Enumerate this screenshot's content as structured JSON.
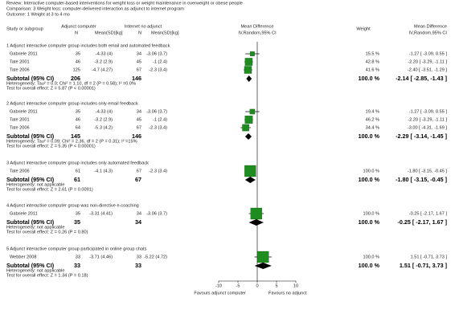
{
  "chart_data": {
    "type": "forest",
    "review": "Review:  Interactive computer-based interventions for weight loss or weight maintenance in overweight or obese people",
    "comparison": "Comparison:  3 Weight loss: computer-delivered interaction as adjunct to internet program",
    "outcome": "Outcome:  1 Weight at 3 to 4 mo",
    "columns": [
      "Study or subgroup",
      "Adjunct computer",
      "N",
      "Mean(SD)[kg]",
      "Internet no adjunct",
      "N",
      "Mean(SD)[kg]",
      "Mean Difference",
      "IV,Random,95% CI",
      "Weight",
      "Mean Difference",
      "IV,Random,95% CI"
    ],
    "subgroups": [
      {
        "title": "1 Adjunct interactive computer group includes both email and automated feedback",
        "studies": [
          {
            "name": "Gabriele 2011",
            "n1": 35,
            "mean_sd1": "-4.33 (4)",
            "n2": 34,
            "mean_sd2": "-3.06 (3.7)",
            "weight": 15.5,
            "weight_label": "15.5 %",
            "md": -1.27,
            "ci_low": -3.09,
            "ci_high": 0.55,
            "ci_label": "-1.27 [ -3.09, 0.55 ]"
          },
          {
            "name": "Tate 2001",
            "n1": 46,
            "mean_sd1": "-3.2 (2.9)",
            "n2": 45,
            "mean_sd2": "-1 (2.4)",
            "weight": 42.8,
            "weight_label": "42.8 %",
            "md": -2.2,
            "ci_low": -3.29,
            "ci_high": -1.11,
            "ci_label": "-2.20 [ -3.29, -1.11 ]"
          },
          {
            "name": "Tate 2006",
            "n1": 125,
            "mean_sd1": "-4.7 (4.27)",
            "n2": 67,
            "mean_sd2": "-2.3 (3.4)",
            "weight": 41.6,
            "weight_label": "41.6 %",
            "md": -2.4,
            "ci_low": -3.51,
            "ci_high": -1.29,
            "ci_label": "-2.40 [ -3.51, -1.29 ]"
          }
        ],
        "subtotal": {
          "label": "Subtotal (95% CI)",
          "n1": 206,
          "n2": 146,
          "weight_label": "100.0 %",
          "md": -2.14,
          "ci_low": -2.85,
          "ci_high": -1.43,
          "ci_label": "-2.14 [ -2.85, -1.43 ]"
        },
        "heterogeneity": "Heterogeneity: Tau² = 0.0; Chi² = 1.10, df = 2 (P = 0.58); I² =0.0%",
        "overall_effect": "Test for overall effect: Z = 5.87 (P < 0.00001)"
      },
      {
        "title": "2 Adjunct interactive computer group includes only email feedback",
        "studies": [
          {
            "name": "Gabriele 2011",
            "n1": 35,
            "mean_sd1": "-4.33 (4)",
            "n2": 34,
            "mean_sd2": "-3.06 (3.7)",
            "weight": 19.4,
            "weight_label": "19.4 %",
            "md": -1.27,
            "ci_low": -3.09,
            "ci_high": 0.55,
            "ci_label": "-1.27 [ -3.09, 0.55 ]"
          },
          {
            "name": "Tate 2001",
            "n1": 46,
            "mean_sd1": "-3.2 (2.9)",
            "n2": 45,
            "mean_sd2": "-1 (2.4)",
            "weight": 46.2,
            "weight_label": "46.2 %",
            "md": -2.2,
            "ci_low": -3.29,
            "ci_high": -1.11,
            "ci_label": "-2.20 [ -3.29, -1.11 ]"
          },
          {
            "name": "Tate 2006",
            "n1": 64,
            "mean_sd1": "-5.3 (4.2)",
            "n2": 67,
            "mean_sd2": "-2.3 (3.4)",
            "weight": 34.4,
            "weight_label": "34.4 %",
            "md": -3.0,
            "ci_low": -4.31,
            "ci_high": -1.69,
            "ci_label": "-3.00 [ -4.31, -1.69 ]"
          }
        ],
        "subtotal": {
          "label": "Subtotal (95% CI)",
          "n1": 145,
          "n2": 146,
          "weight_label": "100.0 %",
          "md": -2.29,
          "ci_low": -3.14,
          "ci_high": -1.45,
          "ci_label": "-2.29 [ -3.14, -1.45 ]"
        },
        "heterogeneity": "Heterogeneity: Tau² = 0.09; Chi² = 2.36, df = 2 (P = 0.31); I² =15%",
        "overall_effect": "Test for overall effect: Z = 5.35 (P < 0.00001)"
      },
      {
        "title": "3 Adjunct interactive computer group includes only automated feedback",
        "studies": [
          {
            "name": "Tate 2006",
            "n1": 61,
            "mean_sd1": "-4.1 (4.3)",
            "n2": 67,
            "mean_sd2": "-2.3 (3.4)",
            "weight": 100.0,
            "weight_label": "100.0 %",
            "md": -1.8,
            "ci_low": -3.15,
            "ci_high": -0.45,
            "ci_label": "-1.80 [ -3.15, -0.45 ]"
          }
        ],
        "subtotal": {
          "label": "Subtotal (95% CI)",
          "n1": 61,
          "n2": 67,
          "weight_label": "100.0 %",
          "md": -1.8,
          "ci_low": -3.15,
          "ci_high": -0.45,
          "ci_label": "-1.80 [ -3.15, -0.45 ]"
        },
        "heterogeneity": "Heterogeneity: not applicable",
        "overall_effect": "Test for overall effect: Z = 2.61 (P = 0.0091)"
      },
      {
        "title": "4 Adjunct interactive computer group was non-directive e-coaching",
        "studies": [
          {
            "name": "Gabriele 2011",
            "n1": 35,
            "mean_sd1": "-3.31 (4.41)",
            "n2": 34,
            "mean_sd2": "-3.06 (3.7)",
            "weight": 100.0,
            "weight_label": "100.0 %",
            "md": -0.25,
            "ci_low": -2.17,
            "ci_high": 1.67,
            "ci_label": "-0.25 [ -2.17, 1.67 ]"
          }
        ],
        "subtotal": {
          "label": "Subtotal (95% CI)",
          "n1": 35,
          "n2": 34,
          "weight_label": "100.0 %",
          "md": -0.25,
          "ci_low": -2.17,
          "ci_high": 1.67,
          "ci_label": "-0.25 [ -2.17, 1.67 ]"
        },
        "heterogeneity": "Heterogeneity: not applicable",
        "overall_effect": "Test for overall effect: Z = 0.26 (P = 0.80)"
      },
      {
        "title": "5 Adjunct interactive computer group participated in online group chats",
        "studies": [
          {
            "name": "Webber 2008",
            "n1": 33,
            "mean_sd1": "-3.71 (4.46)",
            "n2": 33,
            "mean_sd2": "-5.22 (4.72)",
            "weight": 100.0,
            "weight_label": "100.0 %",
            "md": 1.51,
            "ci_low": -0.71,
            "ci_high": 3.73,
            "ci_label": "1.51 [ -0.71, 3.73 ]"
          }
        ],
        "subtotal": {
          "label": "Subtotal (95% CI)",
          "n1": 33,
          "n2": 33,
          "weight_label": "100.0 %",
          "md": 1.51,
          "ci_low": -0.71,
          "ci_high": 3.73,
          "ci_label": "1.51 [ -0.71, 3.73 ]"
        },
        "heterogeneity": "Heterogeneity: not applicable",
        "overall_effect": "Test for overall effect: Z = 1.34 (P = 0.18)"
      }
    ],
    "xlim": [
      -10,
      10
    ],
    "xticks": [
      -10,
      -5,
      0,
      5,
      10
    ],
    "xlabel_left": "Favours adjunct computer",
    "xlabel_right": "Favours no adjunct",
    "square_color": "#1e8c1e"
  }
}
